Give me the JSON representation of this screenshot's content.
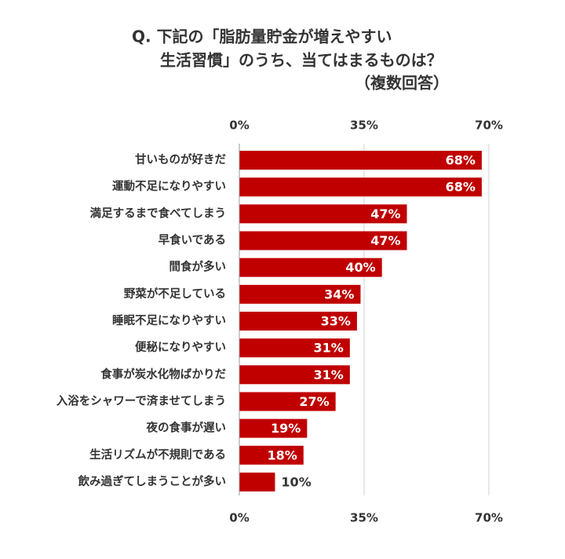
{
  "chart_data": {
    "type": "bar",
    "orientation": "horizontal",
    "title": [
      "Q. 下記の「脂肪量貯金が増えやすい",
      "生活習慣」のうち、当てはまるものは？",
      "（複数回答）"
    ],
    "categories": [
      "甘いものが好きだ",
      "運動不足になりやすい",
      "満足するまで食べてしまう",
      "早食いである",
      "間食が多い",
      "野菜が不足している",
      "睡眠不足になりやすい",
      "便秘になりやすい",
      "食事が炭水化物ばかりだ",
      "入浴をシャワーで済ませてしまう",
      "夜の食事が遅い",
      "生活リズムが不規則である",
      "飲み過ぎてしまうことが多い"
    ],
    "values": [
      68,
      68,
      47,
      47,
      40,
      34,
      33,
      31,
      31,
      27,
      19,
      18,
      10
    ],
    "value_labels": [
      "68%",
      "68%",
      "47%",
      "47%",
      "40%",
      "34%",
      "33%",
      "31%",
      "31%",
      "27%",
      "19%",
      "18%",
      "10%"
    ],
    "color": "#c00000",
    "xlim": [
      0,
      70
    ],
    "xticks": [
      {
        "value": 0,
        "label": "0%"
      },
      {
        "value": 35,
        "label": "35%"
      },
      {
        "value": 70,
        "label": "70%"
      }
    ],
    "grid": true
  }
}
